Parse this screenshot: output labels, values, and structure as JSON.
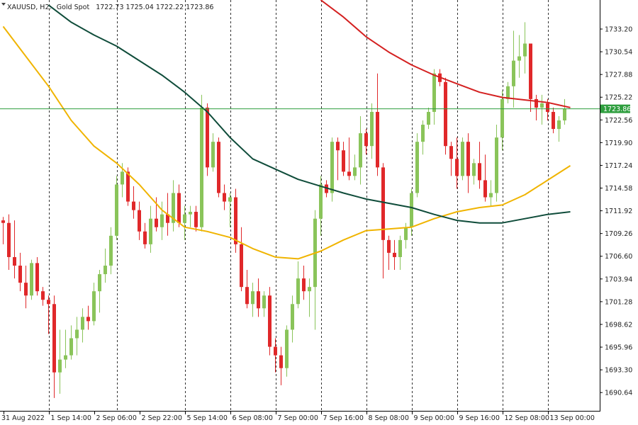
{
  "header": {
    "symbol": "XAUUSD, H2:",
    "name": "Gold Spot",
    "ohlc": "1722.73 1725.04 1722.22 1723.86"
  },
  "current_price_label": "1723.86",
  "colors": {
    "bull": "#8ac45a",
    "bear": "#e0282a",
    "ma_fast": "#f0b400",
    "ma_mid": "#0f4c3a",
    "ma_slow": "#d42020",
    "price_line": "#2e9e3e",
    "grid": "#333333"
  },
  "chart_data": {
    "type": "candlestick",
    "title": "XAUUSD, H2: Gold Spot",
    "ylim": [
      1688.5,
      1736.6
    ],
    "y_ticks": [
      "1733.20",
      "1730.54",
      "1727.88",
      "1725.22",
      "1722.56",
      "1719.90",
      "1717.24",
      "1714.58",
      "1711.92",
      "1709.26",
      "1706.60",
      "1703.94",
      "1701.28",
      "1698.62",
      "1695.96",
      "1693.30",
      "1690.64"
    ],
    "x_labels": [
      {
        "index": 0,
        "label": "31 Aug 2022"
      },
      {
        "index": 8,
        "label": "1 Sep 14:00"
      },
      {
        "index": 16,
        "label": "2 Sep 06:00"
      },
      {
        "index": 24,
        "label": "2 Sep 22:00"
      },
      {
        "index": 32,
        "label": "5 Sep 14:00"
      },
      {
        "index": 40,
        "label": "6 Sep 08:00"
      },
      {
        "index": 48,
        "label": "7 Sep 00:00"
      },
      {
        "index": 56,
        "label": "7 Sep 16:00"
      },
      {
        "index": 64,
        "label": "8 Sep 08:00"
      },
      {
        "index": 72,
        "label": "9 Sep 00:00"
      },
      {
        "index": 80,
        "label": "9 Sep 16:00"
      },
      {
        "index": 88,
        "label": "12 Sep 08:00"
      },
      {
        "index": 96,
        "label": "13 Sep 00:00"
      }
    ],
    "separator_indices": [
      8,
      20,
      32,
      40,
      48,
      56,
      64,
      72,
      80,
      88,
      96
    ],
    "candles": [
      [
        1710.8,
        1711.2,
        1708.0,
        1710.5
      ],
      [
        1710.5,
        1711.5,
        1705.0,
        1706.5
      ],
      [
        1706.5,
        1710.8,
        1704.0,
        1705.5
      ],
      [
        1705.5,
        1707.0,
        1702.5,
        1703.5
      ],
      [
        1703.5,
        1705.5,
        1700.5,
        1702.0
      ],
      [
        1702.0,
        1706.2,
        1701.5,
        1705.8
      ],
      [
        1705.8,
        1706.5,
        1702.0,
        1702.5
      ],
      [
        1702.5,
        1703.0,
        1700.8,
        1701.5
      ],
      [
        1701.5,
        1702.0,
        1697.5,
        1701.0
      ],
      [
        1701.0,
        1702.0,
        1690.0,
        1693.0
      ],
      [
        1693.0,
        1698.0,
        1690.5,
        1694.5
      ],
      [
        1694.5,
        1698.0,
        1693.5,
        1695.0
      ],
      [
        1695.0,
        1698.5,
        1694.5,
        1697.0
      ],
      [
        1697.0,
        1699.5,
        1695.0,
        1698.0
      ],
      [
        1698.0,
        1700.5,
        1696.5,
        1699.5
      ],
      [
        1699.5,
        1700.8,
        1698.0,
        1699.0
      ],
      [
        1699.0,
        1703.5,
        1698.5,
        1702.5
      ],
      [
        1702.5,
        1705.0,
        1700.0,
        1704.5
      ],
      [
        1704.5,
        1707.5,
        1703.5,
        1705.5
      ],
      [
        1705.5,
        1710.0,
        1704.5,
        1709.0
      ],
      [
        1709.0,
        1716.0,
        1708.5,
        1715.0
      ],
      [
        1715.0,
        1717.5,
        1713.5,
        1716.5
      ],
      [
        1716.5,
        1717.0,
        1712.5,
        1713.0
      ],
      [
        1713.0,
        1714.8,
        1711.0,
        1712.0
      ],
      [
        1712.0,
        1713.0,
        1708.5,
        1709.5
      ],
      [
        1709.5,
        1710.5,
        1707.5,
        1708.0
      ],
      [
        1708.0,
        1712.5,
        1707.0,
        1711.0
      ],
      [
        1711.0,
        1713.5,
        1709.5,
        1710.0
      ],
      [
        1710.0,
        1713.0,
        1708.5,
        1711.5
      ],
      [
        1711.5,
        1714.0,
        1709.0,
        1710.5
      ],
      [
        1710.5,
        1715.5,
        1709.5,
        1714.0
      ],
      [
        1714.0,
        1715.0,
        1710.0,
        1710.5
      ],
      [
        1710.5,
        1712.5,
        1708.5,
        1711.5
      ],
      [
        1711.5,
        1712.5,
        1710.0,
        1711.8
      ],
      [
        1711.8,
        1712.5,
        1709.5,
        1710.0
      ],
      [
        1710.0,
        1725.5,
        1709.5,
        1724.0
      ],
      [
        1724.0,
        1724.5,
        1716.0,
        1717.0
      ],
      [
        1717.0,
        1721.0,
        1716.5,
        1720.0
      ],
      [
        1720.0,
        1720.5,
        1713.5,
        1714.0
      ],
      [
        1714.0,
        1715.0,
        1712.0,
        1713.0
      ],
      [
        1713.0,
        1714.0,
        1710.0,
        1713.5
      ],
      [
        1713.5,
        1714.5,
        1707.0,
        1708.0
      ],
      [
        1708.0,
        1710.0,
        1702.5,
        1703.0
      ],
      [
        1703.0,
        1705.0,
        1700.5,
        1701.0
      ],
      [
        1701.0,
        1703.5,
        1699.5,
        1702.5
      ],
      [
        1702.5,
        1704.0,
        1699.5,
        1700.5
      ],
      [
        1700.5,
        1702.5,
        1699.5,
        1702.0
      ],
      [
        1702.0,
        1703.0,
        1695.0,
        1696.0
      ],
      [
        1696.0,
        1697.0,
        1693.0,
        1695.0
      ],
      [
        1695.0,
        1696.0,
        1691.5,
        1693.5
      ],
      [
        1693.5,
        1698.5,
        1692.5,
        1698.0
      ],
      [
        1698.0,
        1702.0,
        1696.5,
        1701.0
      ],
      [
        1701.0,
        1706.0,
        1700.5,
        1704.0
      ],
      [
        1704.0,
        1705.5,
        1701.5,
        1702.5
      ],
      [
        1702.5,
        1704.0,
        1699.5,
        1703.0
      ],
      [
        1703.0,
        1712.0,
        1698.0,
        1711.0
      ],
      [
        1711.0,
        1716.0,
        1709.0,
        1715.0
      ],
      [
        1715.0,
        1715.5,
        1713.5,
        1714.0
      ],
      [
        1714.0,
        1720.5,
        1713.0,
        1720.0
      ],
      [
        1720.0,
        1720.5,
        1715.5,
        1719.0
      ],
      [
        1719.0,
        1720.0,
        1716.0,
        1716.5
      ],
      [
        1716.5,
        1720.5,
        1715.5,
        1716.0
      ],
      [
        1716.0,
        1718.5,
        1715.5,
        1717.0
      ],
      [
        1717.0,
        1723.0,
        1715.0,
        1721.0
      ],
      [
        1721.0,
        1721.5,
        1718.5,
        1719.5
      ],
      [
        1719.5,
        1724.5,
        1718.0,
        1723.5
      ],
      [
        1723.5,
        1728.0,
        1716.0,
        1717.0
      ],
      [
        1717.0,
        1717.5,
        1704.0,
        1708.5
      ],
      [
        1708.5,
        1709.0,
        1705.0,
        1707.0
      ],
      [
        1707.0,
        1708.5,
        1705.0,
        1706.5
      ],
      [
        1706.5,
        1709.0,
        1705.0,
        1708.5
      ],
      [
        1708.5,
        1710.5,
        1707.5,
        1710.0
      ],
      [
        1710.0,
        1714.5,
        1709.0,
        1714.0
      ],
      [
        1714.0,
        1721.0,
        1713.5,
        1720.0
      ],
      [
        1720.0,
        1722.5,
        1718.5,
        1722.0
      ],
      [
        1722.0,
        1724.0,
        1721.5,
        1723.5
      ],
      [
        1723.5,
        1728.5,
        1722.0,
        1728.0
      ],
      [
        1728.0,
        1728.5,
        1726.5,
        1727.0
      ],
      [
        1727.0,
        1727.5,
        1718.5,
        1719.5
      ],
      [
        1719.5,
        1720.0,
        1716.0,
        1718.0
      ],
      [
        1718.0,
        1720.5,
        1714.5,
        1716.0
      ],
      [
        1716.0,
        1720.5,
        1715.5,
        1720.0
      ],
      [
        1720.0,
        1721.0,
        1714.0,
        1716.0
      ],
      [
        1716.0,
        1718.0,
        1715.0,
        1717.5
      ],
      [
        1717.5,
        1720.0,
        1714.5,
        1715.5
      ],
      [
        1715.5,
        1718.5,
        1713.0,
        1713.5
      ],
      [
        1713.5,
        1715.5,
        1712.5,
        1714.0
      ],
      [
        1714.0,
        1722.0,
        1713.0,
        1720.5
      ],
      [
        1720.5,
        1726.0,
        1719.0,
        1725.0
      ],
      [
        1725.0,
        1727.0,
        1724.5,
        1726.5
      ],
      [
        1726.5,
        1733.0,
        1724.0,
        1729.5
      ],
      [
        1729.5,
        1732.5,
        1727.5,
        1730.0
      ],
      [
        1730.0,
        1734.0,
        1728.0,
        1731.5
      ],
      [
        1731.5,
        1731.5,
        1723.5,
        1725.0
      ],
      [
        1725.0,
        1725.5,
        1722.5,
        1724.0
      ],
      [
        1724.0,
        1725.5,
        1722.0,
        1724.5
      ],
      [
        1724.5,
        1725.0,
        1722.5,
        1723.5
      ],
      [
        1723.5,
        1724.0,
        1721.0,
        1721.5
      ],
      [
        1721.5,
        1723.0,
        1720.0,
        1722.5
      ],
      [
        1722.5,
        1725.0,
        1722.0,
        1723.86
      ]
    ],
    "series": [
      {
        "key": "ma_fast",
        "points": [
          [
            0,
            1733.5
          ],
          [
            4,
            1730.0
          ],
          [
            8,
            1726.5
          ],
          [
            12,
            1722.5
          ],
          [
            16,
            1719.5
          ],
          [
            20,
            1717.5
          ],
          [
            24,
            1715.0
          ],
          [
            28,
            1712.0
          ],
          [
            32,
            1710.0
          ],
          [
            36,
            1709.5
          ],
          [
            40,
            1708.8
          ],
          [
            44,
            1707.5
          ],
          [
            48,
            1706.5
          ],
          [
            52,
            1706.3
          ],
          [
            56,
            1707.2
          ],
          [
            60,
            1708.5
          ],
          [
            64,
            1709.6
          ],
          [
            68,
            1709.8
          ],
          [
            72,
            1710.0
          ],
          [
            76,
            1711.0
          ],
          [
            80,
            1711.8
          ],
          [
            84,
            1712.3
          ],
          [
            88,
            1712.6
          ],
          [
            92,
            1713.8
          ],
          [
            96,
            1715.5
          ],
          [
            100,
            1717.2
          ]
        ]
      },
      {
        "key": "ma_mid",
        "points": [
          [
            8,
            1736.0
          ],
          [
            12,
            1734.0
          ],
          [
            16,
            1732.5
          ],
          [
            20,
            1731.2
          ],
          [
            24,
            1729.5
          ],
          [
            28,
            1727.8
          ],
          [
            32,
            1725.8
          ],
          [
            36,
            1723.5
          ],
          [
            40,
            1720.5
          ],
          [
            44,
            1718.0
          ],
          [
            48,
            1716.8
          ],
          [
            52,
            1715.6
          ],
          [
            56,
            1714.8
          ],
          [
            60,
            1714.0
          ],
          [
            64,
            1713.3
          ],
          [
            68,
            1712.8
          ],
          [
            72,
            1712.3
          ],
          [
            76,
            1711.5
          ],
          [
            80,
            1710.8
          ],
          [
            84,
            1710.5
          ],
          [
            88,
            1710.5
          ],
          [
            92,
            1711.0
          ],
          [
            96,
            1711.5
          ],
          [
            100,
            1711.8
          ]
        ]
      },
      {
        "key": "ma_slow",
        "points": [
          [
            56,
            1736.6
          ],
          [
            60,
            1734.6
          ],
          [
            64,
            1732.3
          ],
          [
            68,
            1730.5
          ],
          [
            72,
            1729.0
          ],
          [
            76,
            1727.8
          ],
          [
            80,
            1726.8
          ],
          [
            84,
            1725.8
          ],
          [
            88,
            1725.2
          ],
          [
            92,
            1724.9
          ],
          [
            96,
            1724.6
          ],
          [
            100,
            1724.0
          ]
        ]
      }
    ],
    "current_price": 1723.86
  }
}
